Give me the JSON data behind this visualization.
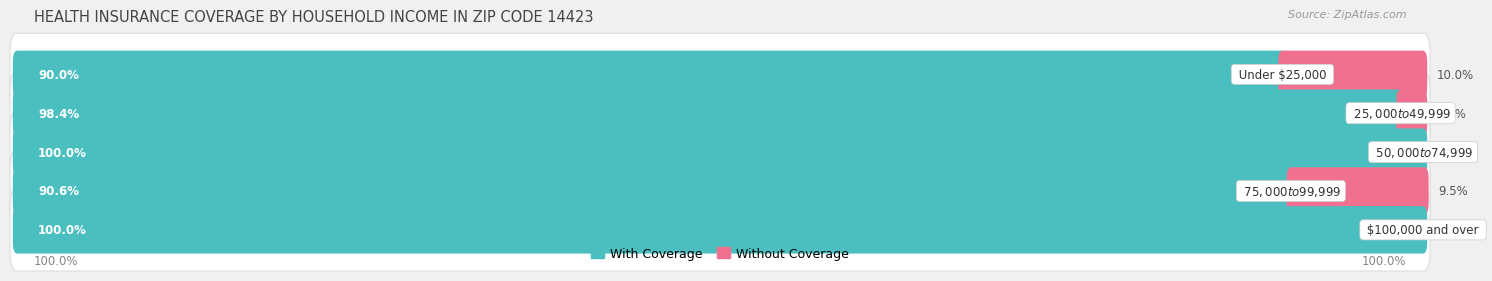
{
  "title": "HEALTH INSURANCE COVERAGE BY HOUSEHOLD INCOME IN ZIP CODE 14423",
  "source": "Source: ZipAtlas.com",
  "categories": [
    "Under $25,000",
    "$25,000 to $49,999",
    "$50,000 to $74,999",
    "$75,000 to $99,999",
    "$100,000 and over"
  ],
  "with_coverage": [
    90.0,
    98.4,
    100.0,
    90.6,
    100.0
  ],
  "without_coverage": [
    10.0,
    1.6,
    0.0,
    9.5,
    0.0
  ],
  "color_with": "#4bbfbf",
  "color_without": "#f07090",
  "bg_color": "#f0f0f0",
  "row_bg": "#ffffff",
  "title_fontsize": 10.5,
  "label_fontsize": 8.5,
  "cat_fontsize": 8.5,
  "legend_fontsize": 9,
  "footer_fontsize": 8.5
}
